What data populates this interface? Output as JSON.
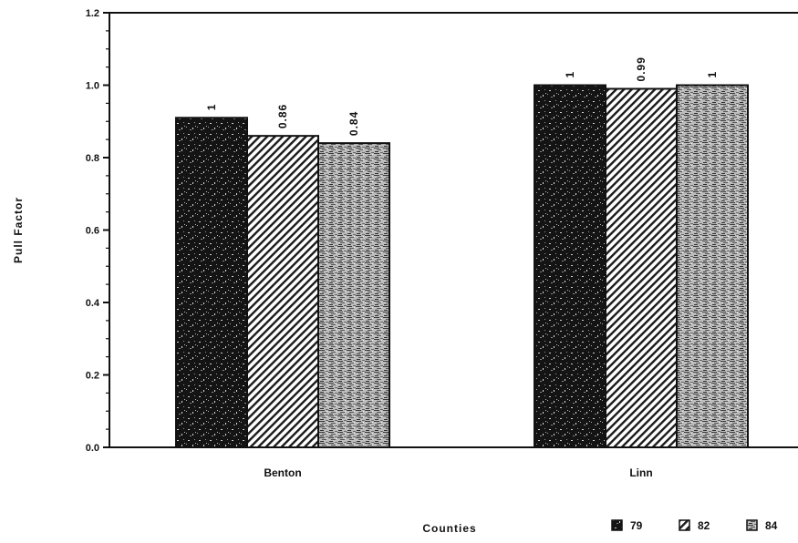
{
  "chart_data": {
    "type": "bar",
    "title": "",
    "xlabel": "Counties",
    "ylabel": "Pull Factor",
    "ylim": [
      0,
      1.2
    ],
    "yticks": [
      "0.0",
      "0.2",
      "0.4",
      "0.6",
      "0.8",
      "1.0",
      "1.2"
    ],
    "categories": [
      "Benton",
      "Linn"
    ],
    "series": [
      {
        "name": "79",
        "values": [
          0.91,
          1.0
        ],
        "labels": [
          "1",
          "1"
        ],
        "color": "#1a1a1a"
      },
      {
        "name": "82",
        "values": [
          0.86,
          0.99
        ],
        "labels": [
          "0.86",
          "0.99"
        ],
        "color": "#7a7a7a"
      },
      {
        "name": "84",
        "values": [
          0.84,
          1.0
        ],
        "labels": [
          "0.84",
          "1"
        ],
        "color": "#8e8e8e"
      }
    ],
    "legend_position": "bottom-right",
    "grid": false
  }
}
